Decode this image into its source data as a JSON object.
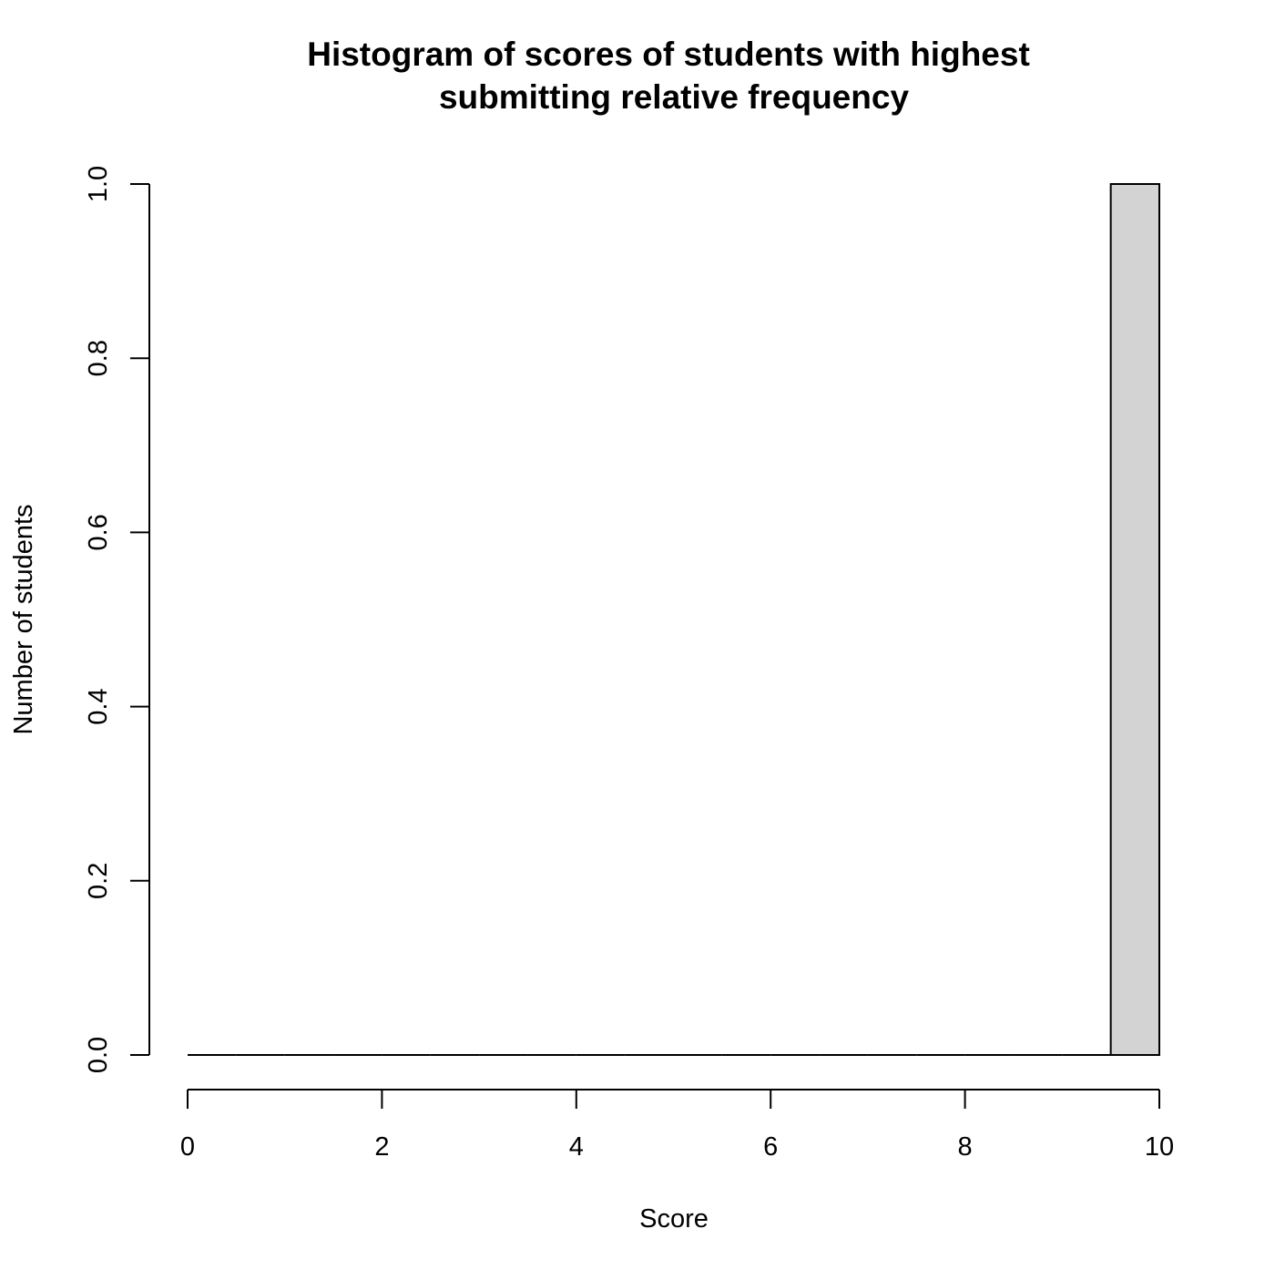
{
  "chart_data": {
    "type": "bar",
    "title_lines": [
      "Histogram of scores of students with highest",
      "submitting relative frequency"
    ],
    "xlabel": "Score",
    "ylabel": "Number of students",
    "xlim": [
      0,
      10
    ],
    "ylim": [
      0,
      1.0
    ],
    "x_ticks": [
      "0",
      "2",
      "4",
      "6",
      "8",
      "10"
    ],
    "y_ticks": [
      "0.0",
      "0.2",
      "0.4",
      "0.6",
      "0.8",
      "1.0"
    ],
    "bins": [
      {
        "from": 0.0,
        "to": 0.5,
        "count": 0
      },
      {
        "from": 0.5,
        "to": 1.0,
        "count": 0
      },
      {
        "from": 1.0,
        "to": 1.5,
        "count": 0
      },
      {
        "from": 1.5,
        "to": 2.0,
        "count": 0
      },
      {
        "from": 2.0,
        "to": 2.5,
        "count": 0
      },
      {
        "from": 2.5,
        "to": 3.0,
        "count": 0
      },
      {
        "from": 3.0,
        "to": 3.5,
        "count": 0
      },
      {
        "from": 3.5,
        "to": 4.0,
        "count": 0
      },
      {
        "from": 4.0,
        "to": 4.5,
        "count": 0
      },
      {
        "from": 4.5,
        "to": 5.0,
        "count": 0
      },
      {
        "from": 5.0,
        "to": 5.5,
        "count": 0
      },
      {
        "from": 5.5,
        "to": 6.0,
        "count": 0
      },
      {
        "from": 6.0,
        "to": 6.5,
        "count": 0
      },
      {
        "from": 6.5,
        "to": 7.0,
        "count": 0
      },
      {
        "from": 7.0,
        "to": 7.5,
        "count": 0
      },
      {
        "from": 7.5,
        "to": 8.0,
        "count": 0
      },
      {
        "from": 8.0,
        "to": 8.5,
        "count": 0
      },
      {
        "from": 8.5,
        "to": 9.0,
        "count": 0
      },
      {
        "from": 9.0,
        "to": 9.5,
        "count": 0
      },
      {
        "from": 9.5,
        "to": 10.0,
        "count": 1
      }
    ],
    "bar_fill": "#d3d3d3",
    "bar_stroke": "#000000",
    "grid": false
  }
}
